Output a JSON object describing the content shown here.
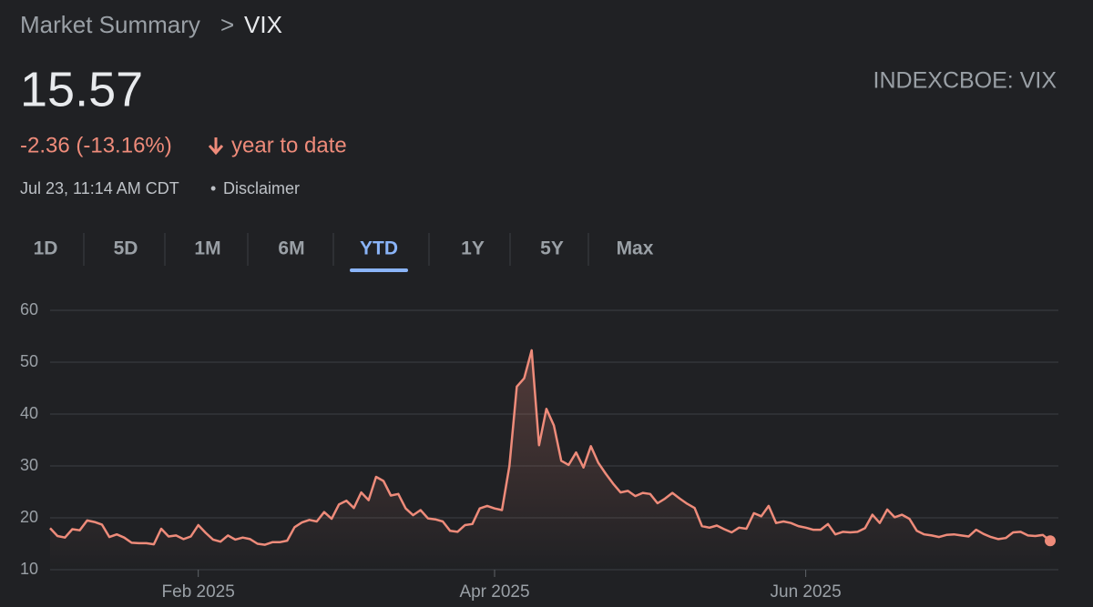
{
  "header": {
    "parent": "Market Summary",
    "separator": ">",
    "current": "VIX"
  },
  "quote": {
    "price": "15.57",
    "change": "-2.36 (-13.16%)",
    "period": "year to date",
    "timestamp": "Jul 23, 11:14 AM CDT",
    "bullet": "•",
    "disclaimer": "Disclaimer",
    "ticker": "INDEXCBOE: VIX"
  },
  "tabs": [
    {
      "label": "1D"
    },
    {
      "label": "5D"
    },
    {
      "label": "1M"
    },
    {
      "label": "6M"
    },
    {
      "label": "YTD",
      "active": true
    },
    {
      "label": "1Y"
    },
    {
      "label": "5Y"
    },
    {
      "label": "Max"
    }
  ],
  "chart_data": {
    "type": "line",
    "categories": [
      null,
      null,
      null,
      null,
      null,
      null,
      null,
      null,
      null,
      null,
      null,
      null,
      null,
      null,
      null,
      null,
      null,
      null,
      null,
      null,
      "Feb 2025",
      null,
      null,
      null,
      null,
      null,
      null,
      null,
      null,
      null,
      null,
      null,
      null,
      null,
      null,
      null,
      null,
      null,
      null,
      null,
      null,
      null,
      null,
      null,
      null,
      null,
      null,
      null,
      null,
      null,
      null,
      null,
      null,
      null,
      null,
      null,
      null,
      null,
      null,
      null,
      "Apr 2025",
      null,
      null,
      null,
      null,
      null,
      null,
      null,
      null,
      null,
      null,
      null,
      null,
      null,
      null,
      null,
      null,
      null,
      null,
      null,
      null,
      null,
      null,
      null,
      null,
      null,
      null,
      null,
      null,
      null,
      null,
      null,
      null,
      null,
      null,
      null,
      null,
      null,
      null,
      null,
      null,
      null,
      "Jun 2025",
      null,
      null,
      null,
      null,
      null,
      null,
      null,
      null,
      null,
      null,
      null,
      null,
      null,
      null,
      null,
      null,
      null,
      null,
      null,
      null,
      null,
      null,
      null,
      null,
      null,
      null,
      null,
      null,
      null,
      null,
      null,
      null,
      null
    ],
    "series": [
      {
        "name": "VIX",
        "color": "#ee8b7a",
        "values": [
          18,
          16.5,
          16.2,
          17.8,
          17.6,
          19.5,
          19.2,
          18.7,
          16.3,
          16.8,
          16.2,
          15.2,
          15.1,
          15.1,
          14.9,
          17.9,
          16.4,
          16.6,
          15.9,
          16.4,
          18.6,
          17.1,
          15.8,
          15.4,
          16.6,
          15.8,
          16.2,
          15.9,
          15,
          14.8,
          15.3,
          15.3,
          15.6,
          18.2,
          19.1,
          19.6,
          19.3,
          21.1,
          19.8,
          22.6,
          23.3,
          21.9,
          24.9,
          23.4,
          27.9,
          27.1,
          24.3,
          24.6,
          21.8,
          20.5,
          21.5,
          19.9,
          19.7,
          19.3,
          17.5,
          17.3,
          18.6,
          18.8,
          21.8,
          22.3,
          21.8,
          21.5,
          30,
          45.3,
          46.9,
          52.3,
          34,
          41,
          37.8,
          31,
          30.2,
          32.6,
          29.7,
          33.8,
          30.6,
          28.5,
          26.6,
          24.9,
          25.2,
          24.2,
          24.8,
          24.6,
          22.8,
          23.7,
          24.8,
          23.7,
          22.7,
          21.9,
          18.4,
          18.1,
          18.5,
          17.8,
          17.2,
          18.1,
          17.9,
          20.9,
          20.3,
          22.3,
          19,
          19.3,
          19,
          18.4,
          18.1,
          17.7,
          17.7,
          18.8,
          16.8,
          17.3,
          17.2,
          17.3,
          18,
          20.6,
          19,
          21.6,
          20.1,
          20.6,
          19.8,
          17.5,
          16.8,
          16.6,
          16.3,
          16.7,
          16.8,
          16.6,
          16.4,
          17.7,
          16.9,
          16.3,
          15.9,
          16.1,
          17.2,
          17.3,
          16.6,
          16.5,
          16.7,
          15.57
        ]
      }
    ],
    "ylim": [
      10,
      60
    ],
    "yticks": [
      10,
      20,
      30,
      40,
      50,
      60
    ],
    "grid": true
  }
}
